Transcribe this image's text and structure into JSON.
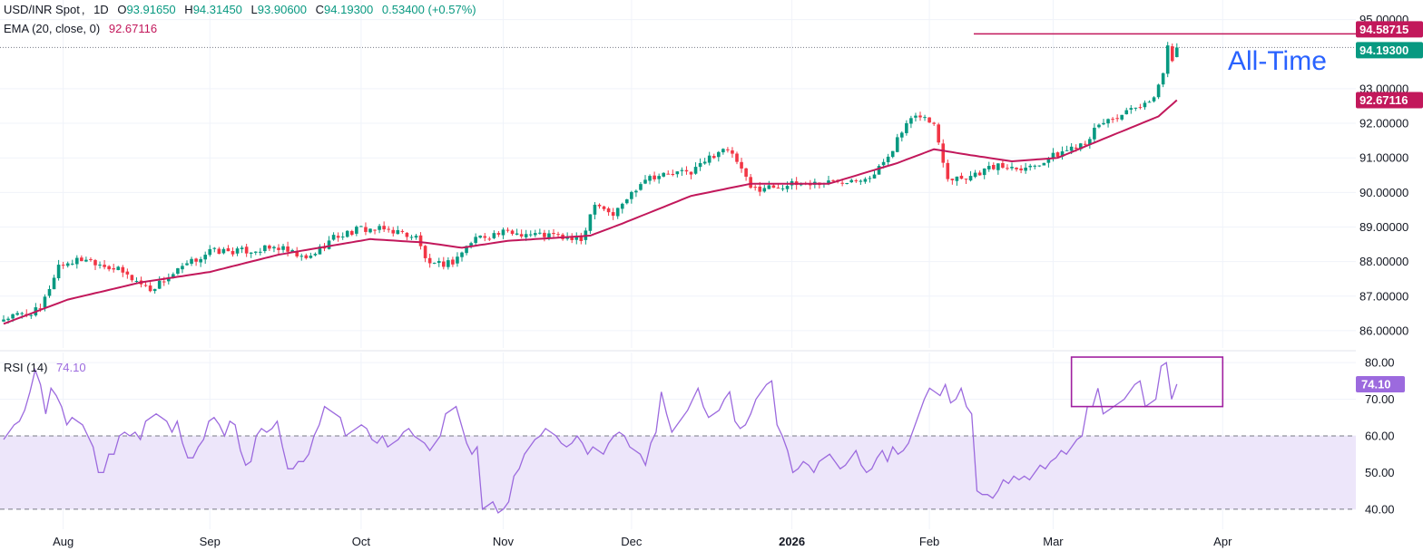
{
  "symbol": {
    "name": "USD/INR Spot",
    "interval": "1D",
    "open_label": "O",
    "open": "93.91650",
    "high_label": "H",
    "high": "94.31450",
    "low_label": "L",
    "low": "93.90600",
    "close_label": "C",
    "close": "94.19300",
    "change": "0.53400 (+0.57%)"
  },
  "ema": {
    "label": "EMA (20, close, 0)",
    "value": "92.67116"
  },
  "rsi": {
    "label": "RSI (14)",
    "value": "74.10"
  },
  "annotation": {
    "text": "All-Time"
  },
  "colors": {
    "up": "#089981",
    "down": "#f23645",
    "ema": "#c2185b",
    "rsi_line": "#9c6ade",
    "rsi_band": "#ede6fa",
    "box": "#a020a0",
    "ath_line": "#c2185b",
    "annotation": "#2962ff"
  },
  "chart_data": [
    {
      "type": "candlestick",
      "title": "USD/INR Spot, 1D",
      "y_axis": {
        "range": [
          85.5,
          95.2
        ],
        "ticks": [
          "95.00000",
          "93.00000",
          "92.00000",
          "91.00000",
          "90.00000",
          "89.00000",
          "88.00000",
          "87.00000",
          "86.00000"
        ],
        "tick_values": [
          95,
          93,
          92,
          91,
          90,
          89,
          88,
          87,
          86
        ]
      },
      "x_axis": {
        "labels": [
          "Aug",
          "Sep",
          "Oct",
          "Nov",
          "Dec",
          "2026",
          "Feb",
          "Mar",
          "Apr"
        ],
        "label_index": [
          13,
          45,
          78,
          109,
          137,
          172,
          202,
          229,
          266
        ]
      },
      "price_labels": [
        {
          "text": "94.58715",
          "value": 94.58715,
          "kind": "ath"
        },
        {
          "text": "94.19300",
          "value": 94.193,
          "kind": "last"
        },
        {
          "text": "92.67116",
          "value": 92.67116,
          "kind": "ema"
        }
      ],
      "ath_level": 94.58715,
      "ema_waypoints": [
        [
          0,
          86.2
        ],
        [
          14,
          86.9
        ],
        [
          30,
          87.4
        ],
        [
          45,
          87.7
        ],
        [
          60,
          88.2
        ],
        [
          80,
          88.65
        ],
        [
          92,
          88.55
        ],
        [
          100,
          88.4
        ],
        [
          110,
          88.6
        ],
        [
          128,
          88.75
        ],
        [
          135,
          89.1
        ],
        [
          150,
          89.9
        ],
        [
          163,
          90.25
        ],
        [
          180,
          90.25
        ],
        [
          195,
          90.85
        ],
        [
          203,
          91.25
        ],
        [
          210,
          91.1
        ],
        [
          220,
          90.9
        ],
        [
          230,
          91.0
        ],
        [
          240,
          91.55
        ],
        [
          252,
          92.2
        ],
        [
          256,
          92.67116
        ]
      ],
      "close_waypoints": [
        [
          0,
          86.35
        ],
        [
          8,
          86.6
        ],
        [
          12,
          87.9
        ],
        [
          18,
          88.1
        ],
        [
          25,
          87.75
        ],
        [
          32,
          87.2
        ],
        [
          40,
          87.9
        ],
        [
          45,
          88.3
        ],
        [
          52,
          88.3
        ],
        [
          60,
          88.4
        ],
        [
          66,
          88.05
        ],
        [
          72,
          88.7
        ],
        [
          78,
          88.95
        ],
        [
          85,
          88.9
        ],
        [
          90,
          88.7
        ],
        [
          93,
          87.85
        ],
        [
          98,
          88.0
        ],
        [
          103,
          88.7
        ],
        [
          110,
          88.85
        ],
        [
          120,
          88.75
        ],
        [
          126,
          88.6
        ],
        [
          129,
          89.75
        ],
        [
          133,
          89.35
        ],
        [
          140,
          90.45
        ],
        [
          150,
          90.6
        ],
        [
          157,
          91.3
        ],
        [
          160,
          90.9
        ],
        [
          163,
          90.1
        ],
        [
          170,
          90.2
        ],
        [
          180,
          90.3
        ],
        [
          190,
          90.5
        ],
        [
          194,
          91.3
        ],
        [
          197,
          91.95
        ],
        [
          200,
          92.25
        ],
        [
          203,
          91.95
        ],
        [
          206,
          90.45
        ],
        [
          210,
          90.45
        ],
        [
          216,
          90.75
        ],
        [
          224,
          90.75
        ],
        [
          230,
          91.1
        ],
        [
          236,
          91.5
        ],
        [
          240,
          92.05
        ],
        [
          246,
          92.35
        ],
        [
          250,
          92.55
        ],
        [
          253,
          93.4
        ],
        [
          254,
          94.3
        ],
        [
          255,
          93.9
        ],
        [
          256,
          94.193
        ]
      ],
      "candle_count": 257,
      "last_candle": {
        "open": 93.9165,
        "high": 94.3145,
        "low": 93.906,
        "close": 94.193
      }
    },
    {
      "type": "line",
      "title": "RSI (14)",
      "y_axis": {
        "range": [
          36,
          82
        ],
        "ticks": [
          "80.00",
          "70.00",
          "60.00",
          "50.00",
          "40.00"
        ],
        "tick_values": [
          80,
          70,
          60,
          50,
          40
        ]
      },
      "bands": {
        "upper": 60,
        "lower": 40
      },
      "last_value": 74.1,
      "highlight_box": {
        "x_from": 233,
        "x_to": 266,
        "y_from": 68,
        "y_to": 81.5
      },
      "values": [
        59,
        61,
        63,
        64,
        67,
        72,
        78,
        74,
        66,
        73,
        71,
        68,
        63,
        65,
        64,
        63,
        60,
        57,
        50,
        50,
        55,
        55,
        60,
        61,
        60,
        61,
        59,
        64,
        65,
        66,
        65,
        64,
        61,
        64,
        58,
        54,
        54,
        57,
        59,
        64,
        65,
        63,
        60,
        64,
        63,
        56,
        52,
        53,
        60,
        62,
        61,
        62,
        64,
        57,
        51,
        51,
        53,
        53,
        55,
        60,
        63,
        68,
        67,
        66,
        65,
        60,
        61,
        62,
        63,
        62,
        59,
        58,
        60,
        57,
        58,
        59,
        61,
        62,
        60,
        59,
        58,
        56,
        58,
        60,
        66,
        67,
        68,
        63,
        58,
        55,
        57,
        40,
        41,
        42,
        39,
        40,
        42,
        49,
        51,
        55,
        57,
        59,
        60,
        62,
        61,
        60,
        58,
        57,
        58,
        60,
        58,
        55,
        57,
        56,
        55,
        58,
        60,
        61,
        60,
        57,
        56,
        55,
        52,
        58,
        61,
        72,
        66,
        61,
        63,
        65,
        67,
        70,
        73,
        68,
        65,
        66,
        67,
        70,
        72,
        64,
        62,
        63,
        66,
        70,
        72,
        74,
        75,
        63,
        60,
        56,
        50,
        51,
        53,
        52,
        50,
        53,
        54,
        55,
        53,
        51,
        52,
        54,
        56,
        52,
        50,
        51,
        54,
        56,
        53,
        57,
        55,
        56,
        58,
        62,
        66,
        70,
        73,
        72,
        71,
        74,
        69,
        70,
        73,
        68,
        66,
        45,
        44,
        44,
        43,
        45,
        48,
        47,
        49,
        48,
        49,
        48,
        50,
        52,
        51,
        53,
        54,
        56,
        55,
        57,
        59,
        60,
        68,
        68,
        73,
        66,
        67,
        68,
        69,
        70,
        72,
        74,
        75,
        68,
        69,
        70,
        79,
        80,
        70,
        74.1
      ]
    }
  ]
}
